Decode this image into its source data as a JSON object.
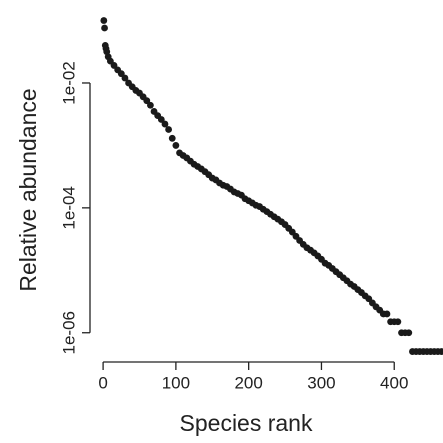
{
  "chart_data": {
    "type": "scatter",
    "x_label": "Species rank",
    "y_label": "Relative abundance",
    "x": [
      1,
      2,
      3,
      4,
      5,
      7,
      10,
      15,
      20,
      25,
      30,
      35,
      40,
      45,
      50,
      55,
      60,
      65,
      70,
      75,
      80,
      85,
      90,
      95,
      100,
      105,
      110,
      115,
      120,
      125,
      130,
      135,
      140,
      145,
      150,
      155,
      160,
      165,
      170,
      175,
      180,
      185,
      190,
      195,
      200,
      205,
      210,
      215,
      220,
      225,
      230,
      235,
      240,
      245,
      250,
      255,
      260,
      265,
      270,
      275,
      280,
      285,
      290,
      295,
      300,
      305,
      310,
      315,
      320,
      325,
      330,
      335,
      340,
      345,
      350,
      355,
      360,
      365,
      370,
      375,
      380,
      385,
      390,
      395,
      400,
      405,
      410,
      415,
      420,
      425,
      430,
      435,
      440,
      445,
      450,
      455,
      460,
      465
    ],
    "values": [
      0.1,
      0.076,
      0.04,
      0.0355,
      0.0316,
      0.0263,
      0.0224,
      0.0191,
      0.0162,
      0.0141,
      0.012,
      0.01,
      0.0087,
      0.0076,
      0.0069,
      0.006,
      0.0052,
      0.0044,
      0.0035,
      0.003,
      0.0026,
      0.0022,
      0.0018,
      0.0013,
      0.001,
      0.00076,
      0.00069,
      0.00063,
      0.00056,
      0.0005,
      0.00046,
      0.00042,
      0.00038,
      0.00034,
      0.0003,
      0.00028,
      0.00025,
      0.00023,
      0.00022,
      0.0002,
      0.00018,
      0.00017,
      0.00016,
      0.00014,
      0.00013,
      0.00012,
      0.00011,
      0.000105,
      9.5e-05,
      8.7e-05,
      7.9e-05,
      7.2e-05,
      6.6e-05,
      6e-05,
      5.4e-05,
      4.7e-05,
      4.1e-05,
      3.5e-05,
      3e-05,
      2.6e-05,
      2.3e-05,
      2.1e-05,
      1.9e-05,
      1.7e-05,
      1.5e-05,
      1.3e-05,
      1.2e-05,
      1.07e-05,
      9.5e-06,
      8.5e-06,
      7.6e-06,
      6.8e-06,
      6e-06,
      5.5e-06,
      4.9e-06,
      4.4e-06,
      3.9e-06,
      3.5e-06,
      3e-06,
      2.6e-06,
      2.3e-06,
      2e-06,
      2e-06,
      1.5e-06,
      1.5e-06,
      1.5e-06,
      1e-06,
      1e-06,
      1e-06,
      5e-07,
      5e-07,
      5e-07,
      5e-07,
      5e-07,
      5e-07,
      5e-07,
      5e-07,
      5e-07
    ],
    "color": "#1a1a1a",
    "log_y": true,
    "xlim": [
      -18,
      467
    ],
    "ylim": [
      3.4e-07,
      0.137
    ],
    "xticks": [
      0,
      100,
      200,
      300,
      400
    ],
    "yticks": [
      {
        "value": 0.01,
        "label": "1e-02"
      },
      {
        "value": 0.0001,
        "label": "1e-04"
      },
      {
        "value": 1e-06,
        "label": "1e-06"
      }
    ]
  }
}
